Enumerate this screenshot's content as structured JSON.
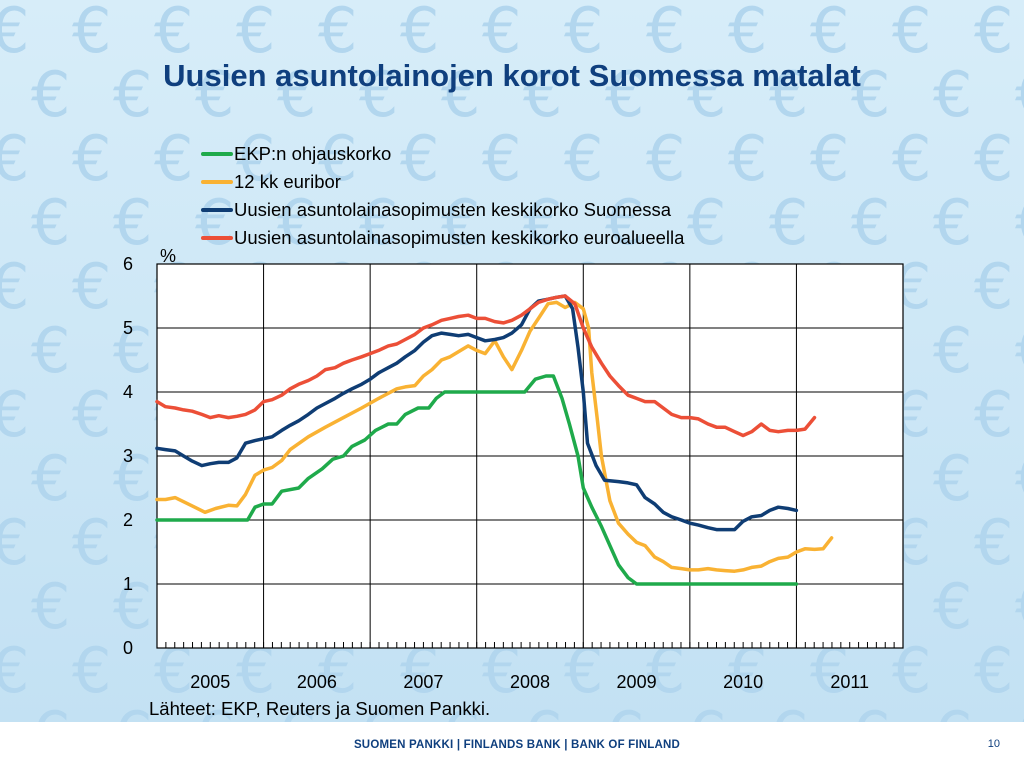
{
  "slide": {
    "title": "Uusien asuntolainojen korot Suomessa matalat",
    "source": "Lähteet: EKP, Reuters ja Suomen Pankki.",
    "footer": "SUOMEN PANKKI | FINLANDS BANK | BANK OF FINLAND",
    "page_number": "10",
    "background_icon": "euro-sign-icon"
  },
  "chart_data": {
    "type": "line",
    "title": "",
    "xlabel": "",
    "ylabel": "%",
    "ylim": [
      0,
      6
    ],
    "yticks": [
      0,
      1,
      2,
      3,
      4,
      5,
      6
    ],
    "xlim": [
      2005.0,
      2012.0
    ],
    "xticks": [
      "2005",
      "2006",
      "2007",
      "2008",
      "2009",
      "2010",
      "2011"
    ],
    "grid": true,
    "legend": "top",
    "series": [
      {
        "name": "EKP:n ohjauskorko",
        "color": "#1faa4b",
        "points": [
          [
            2005.0,
            2.0
          ],
          [
            2005.2,
            2.0
          ],
          [
            2005.5,
            2.0
          ],
          [
            2005.85,
            2.0
          ],
          [
            2005.92,
            2.2
          ],
          [
            2006.0,
            2.25
          ],
          [
            2006.08,
            2.25
          ],
          [
            2006.17,
            2.45
          ],
          [
            2006.33,
            2.5
          ],
          [
            2006.42,
            2.65
          ],
          [
            2006.55,
            2.8
          ],
          [
            2006.65,
            2.95
          ],
          [
            2006.75,
            3.0
          ],
          [
            2006.83,
            3.15
          ],
          [
            2006.95,
            3.25
          ],
          [
            2007.05,
            3.4
          ],
          [
            2007.17,
            3.5
          ],
          [
            2007.25,
            3.5
          ],
          [
            2007.33,
            3.65
          ],
          [
            2007.45,
            3.75
          ],
          [
            2007.55,
            3.75
          ],
          [
            2007.62,
            3.9
          ],
          [
            2007.7,
            4.0
          ],
          [
            2008.0,
            4.0
          ],
          [
            2008.45,
            4.0
          ],
          [
            2008.55,
            4.2
          ],
          [
            2008.65,
            4.25
          ],
          [
            2008.72,
            4.25
          ],
          [
            2008.8,
            3.9
          ],
          [
            2008.87,
            3.5
          ],
          [
            2008.95,
            3.0
          ],
          [
            2009.0,
            2.5
          ],
          [
            2009.08,
            2.2
          ],
          [
            2009.17,
            1.9
          ],
          [
            2009.25,
            1.6
          ],
          [
            2009.33,
            1.3
          ],
          [
            2009.42,
            1.1
          ],
          [
            2009.5,
            1.0
          ],
          [
            2010.0,
            1.0
          ],
          [
            2010.5,
            1.0
          ],
          [
            2011.0,
            1.0
          ]
        ]
      },
      {
        "name": "12 kk euribor",
        "color": "#f9b233",
        "points": [
          [
            2005.0,
            2.32
          ],
          [
            2005.08,
            2.32
          ],
          [
            2005.17,
            2.35
          ],
          [
            2005.33,
            2.22
          ],
          [
            2005.45,
            2.12
          ],
          [
            2005.55,
            2.18
          ],
          [
            2005.67,
            2.23
          ],
          [
            2005.75,
            2.22
          ],
          [
            2005.83,
            2.4
          ],
          [
            2005.92,
            2.7
          ],
          [
            2006.0,
            2.78
          ],
          [
            2006.08,
            2.82
          ],
          [
            2006.17,
            2.93
          ],
          [
            2006.25,
            3.1
          ],
          [
            2006.42,
            3.3
          ],
          [
            2006.58,
            3.45
          ],
          [
            2006.75,
            3.6
          ],
          [
            2006.92,
            3.75
          ],
          [
            2007.08,
            3.9
          ],
          [
            2007.25,
            4.05
          ],
          [
            2007.33,
            4.08
          ],
          [
            2007.42,
            4.1
          ],
          [
            2007.5,
            4.25
          ],
          [
            2007.58,
            4.35
          ],
          [
            2007.67,
            4.5
          ],
          [
            2007.75,
            4.55
          ],
          [
            2007.85,
            4.65
          ],
          [
            2007.92,
            4.72
          ],
          [
            2008.0,
            4.65
          ],
          [
            2008.08,
            4.6
          ],
          [
            2008.17,
            4.8
          ],
          [
            2008.25,
            4.55
          ],
          [
            2008.33,
            4.35
          ],
          [
            2008.42,
            4.65
          ],
          [
            2008.5,
            4.95
          ],
          [
            2008.58,
            5.15
          ],
          [
            2008.67,
            5.38
          ],
          [
            2008.75,
            5.4
          ],
          [
            2008.83,
            5.32
          ],
          [
            2008.92,
            5.4
          ],
          [
            2009.0,
            5.3
          ],
          [
            2009.05,
            5.0
          ],
          [
            2009.08,
            4.3
          ],
          [
            2009.13,
            3.6
          ],
          [
            2009.17,
            3.0
          ],
          [
            2009.25,
            2.3
          ],
          [
            2009.33,
            1.95
          ],
          [
            2009.42,
            1.78
          ],
          [
            2009.5,
            1.65
          ],
          [
            2009.58,
            1.6
          ],
          [
            2009.67,
            1.42
          ],
          [
            2009.75,
            1.35
          ],
          [
            2009.83,
            1.26
          ],
          [
            2009.92,
            1.24
          ],
          [
            2010.0,
            1.22
          ],
          [
            2010.08,
            1.22
          ],
          [
            2010.17,
            1.24
          ],
          [
            2010.25,
            1.22
          ],
          [
            2010.33,
            1.21
          ],
          [
            2010.42,
            1.2
          ],
          [
            2010.5,
            1.22
          ],
          [
            2010.58,
            1.26
          ],
          [
            2010.67,
            1.28
          ],
          [
            2010.75,
            1.35
          ],
          [
            2010.83,
            1.4
          ],
          [
            2010.92,
            1.42
          ],
          [
            2011.0,
            1.5
          ],
          [
            2011.08,
            1.55
          ],
          [
            2011.17,
            1.54
          ],
          [
            2011.25,
            1.55
          ],
          [
            2011.33,
            1.72
          ]
        ]
      },
      {
        "name": "Uusien asuntolainasopimusten keskikorko Suomessa",
        "color": "#0f3d74",
        "points": [
          [
            2005.0,
            3.12
          ],
          [
            2005.08,
            3.1
          ],
          [
            2005.17,
            3.08
          ],
          [
            2005.25,
            3.0
          ],
          [
            2005.33,
            2.92
          ],
          [
            2005.42,
            2.85
          ],
          [
            2005.5,
            2.88
          ],
          [
            2005.58,
            2.9
          ],
          [
            2005.67,
            2.9
          ],
          [
            2005.75,
            2.97
          ],
          [
            2005.83,
            3.2
          ],
          [
            2005.92,
            3.24
          ],
          [
            2006.0,
            3.27
          ],
          [
            2006.08,
            3.3
          ],
          [
            2006.17,
            3.4
          ],
          [
            2006.25,
            3.48
          ],
          [
            2006.33,
            3.55
          ],
          [
            2006.42,
            3.65
          ],
          [
            2006.5,
            3.75
          ],
          [
            2006.58,
            3.82
          ],
          [
            2006.67,
            3.9
          ],
          [
            2006.75,
            3.98
          ],
          [
            2006.83,
            4.05
          ],
          [
            2006.92,
            4.12
          ],
          [
            2007.0,
            4.2
          ],
          [
            2007.08,
            4.3
          ],
          [
            2007.17,
            4.38
          ],
          [
            2007.25,
            4.45
          ],
          [
            2007.33,
            4.55
          ],
          [
            2007.42,
            4.65
          ],
          [
            2007.5,
            4.78
          ],
          [
            2007.58,
            4.88
          ],
          [
            2007.67,
            4.92
          ],
          [
            2007.75,
            4.9
          ],
          [
            2007.83,
            4.88
          ],
          [
            2007.92,
            4.9
          ],
          [
            2008.0,
            4.85
          ],
          [
            2008.08,
            4.8
          ],
          [
            2008.17,
            4.82
          ],
          [
            2008.25,
            4.85
          ],
          [
            2008.33,
            4.92
          ],
          [
            2008.42,
            5.05
          ],
          [
            2008.5,
            5.3
          ],
          [
            2008.58,
            5.42
          ],
          [
            2008.67,
            5.45
          ],
          [
            2008.75,
            5.48
          ],
          [
            2008.83,
            5.5
          ],
          [
            2008.9,
            5.3
          ],
          [
            2008.95,
            4.7
          ],
          [
            2009.0,
            4.0
          ],
          [
            2009.04,
            3.2
          ],
          [
            2009.12,
            2.85
          ],
          [
            2009.2,
            2.62
          ],
          [
            2009.33,
            2.6
          ],
          [
            2009.42,
            2.58
          ],
          [
            2009.5,
            2.55
          ],
          [
            2009.58,
            2.35
          ],
          [
            2009.67,
            2.25
          ],
          [
            2009.75,
            2.12
          ],
          [
            2009.83,
            2.05
          ],
          [
            2009.92,
            2.0
          ],
          [
            2010.0,
            1.95
          ],
          [
            2010.08,
            1.92
          ],
          [
            2010.17,
            1.88
          ],
          [
            2010.25,
            1.85
          ],
          [
            2010.33,
            1.85
          ],
          [
            2010.42,
            1.85
          ],
          [
            2010.5,
            1.98
          ],
          [
            2010.58,
            2.05
          ],
          [
            2010.67,
            2.07
          ],
          [
            2010.75,
            2.15
          ],
          [
            2010.83,
            2.2
          ],
          [
            2010.92,
            2.18
          ],
          [
            2011.0,
            2.15
          ]
        ]
      },
      {
        "name": "Uusien asuntolainasopimusten keskikorko euroalueella",
        "color": "#ec4f37",
        "points": [
          [
            2005.0,
            3.85
          ],
          [
            2005.08,
            3.77
          ],
          [
            2005.17,
            3.75
          ],
          [
            2005.25,
            3.72
          ],
          [
            2005.33,
            3.7
          ],
          [
            2005.42,
            3.65
          ],
          [
            2005.5,
            3.6
          ],
          [
            2005.58,
            3.63
          ],
          [
            2005.67,
            3.6
          ],
          [
            2005.75,
            3.62
          ],
          [
            2005.83,
            3.65
          ],
          [
            2005.92,
            3.72
          ],
          [
            2006.0,
            3.85
          ],
          [
            2006.08,
            3.88
          ],
          [
            2006.17,
            3.95
          ],
          [
            2006.25,
            4.05
          ],
          [
            2006.33,
            4.12
          ],
          [
            2006.42,
            4.18
          ],
          [
            2006.5,
            4.25
          ],
          [
            2006.58,
            4.35
          ],
          [
            2006.67,
            4.38
          ],
          [
            2006.75,
            4.45
          ],
          [
            2006.83,
            4.5
          ],
          [
            2006.92,
            4.55
          ],
          [
            2007.0,
            4.6
          ],
          [
            2007.08,
            4.65
          ],
          [
            2007.17,
            4.72
          ],
          [
            2007.25,
            4.75
          ],
          [
            2007.33,
            4.82
          ],
          [
            2007.42,
            4.9
          ],
          [
            2007.5,
            5.0
          ],
          [
            2007.58,
            5.05
          ],
          [
            2007.67,
            5.12
          ],
          [
            2007.75,
            5.15
          ],
          [
            2007.83,
            5.18
          ],
          [
            2007.92,
            5.2
          ],
          [
            2008.0,
            5.15
          ],
          [
            2008.08,
            5.15
          ],
          [
            2008.17,
            5.1
          ],
          [
            2008.25,
            5.08
          ],
          [
            2008.33,
            5.12
          ],
          [
            2008.42,
            5.2
          ],
          [
            2008.5,
            5.3
          ],
          [
            2008.58,
            5.4
          ],
          [
            2008.67,
            5.45
          ],
          [
            2008.75,
            5.48
          ],
          [
            2008.83,
            5.5
          ],
          [
            2008.92,
            5.38
          ],
          [
            2009.0,
            5.0
          ],
          [
            2009.08,
            4.7
          ],
          [
            2009.17,
            4.45
          ],
          [
            2009.25,
            4.25
          ],
          [
            2009.33,
            4.1
          ],
          [
            2009.42,
            3.95
          ],
          [
            2009.5,
            3.9
          ],
          [
            2009.58,
            3.85
          ],
          [
            2009.67,
            3.85
          ],
          [
            2009.75,
            3.75
          ],
          [
            2009.83,
            3.65
          ],
          [
            2009.92,
            3.6
          ],
          [
            2010.0,
            3.6
          ],
          [
            2010.08,
            3.58
          ],
          [
            2010.17,
            3.5
          ],
          [
            2010.25,
            3.45
          ],
          [
            2010.33,
            3.45
          ],
          [
            2010.42,
            3.38
          ],
          [
            2010.5,
            3.32
          ],
          [
            2010.58,
            3.38
          ],
          [
            2010.67,
            3.5
          ],
          [
            2010.75,
            3.4
          ],
          [
            2010.83,
            3.38
          ],
          [
            2010.92,
            3.4
          ],
          [
            2011.0,
            3.4
          ],
          [
            2011.08,
            3.42
          ],
          [
            2011.17,
            3.6
          ]
        ]
      }
    ]
  }
}
